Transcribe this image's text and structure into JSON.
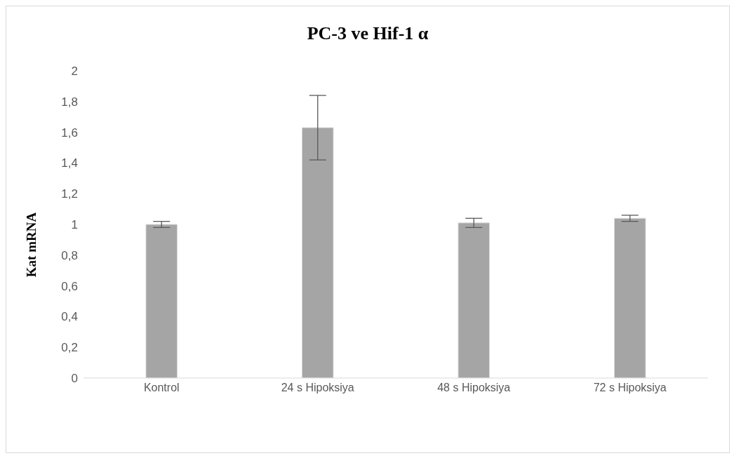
{
  "chart_data": {
    "type": "bar",
    "title": "PC-3 ve Hif-1 α",
    "ylabel": "Kat mRNA",
    "categories": [
      "Kontrol",
      "24 s Hipoksiya",
      "48 s Hipoksiya",
      "72 s Hipoksiya"
    ],
    "values": [
      1.0,
      1.63,
      1.01,
      1.04
    ],
    "errors": [
      0.02,
      0.21,
      0.03,
      0.02
    ],
    "color": "#a5a5a5",
    "ylim": [
      0,
      2
    ],
    "yticks": [
      0,
      {
        "value": 0.2,
        "label": "0,2"
      },
      {
        "value": 0.4,
        "label": "0,4"
      },
      {
        "value": 0.6,
        "label": "0,6"
      },
      {
        "value": 0.8,
        "label": "0,8"
      },
      1,
      {
        "value": 1.2,
        "label": "1,2"
      },
      {
        "value": 1.4,
        "label": "1,4"
      },
      {
        "value": 1.6,
        "label": "1,6"
      },
      {
        "value": 1.8,
        "label": "1,8"
      },
      2
    ],
    "grid": false,
    "legend": false
  }
}
